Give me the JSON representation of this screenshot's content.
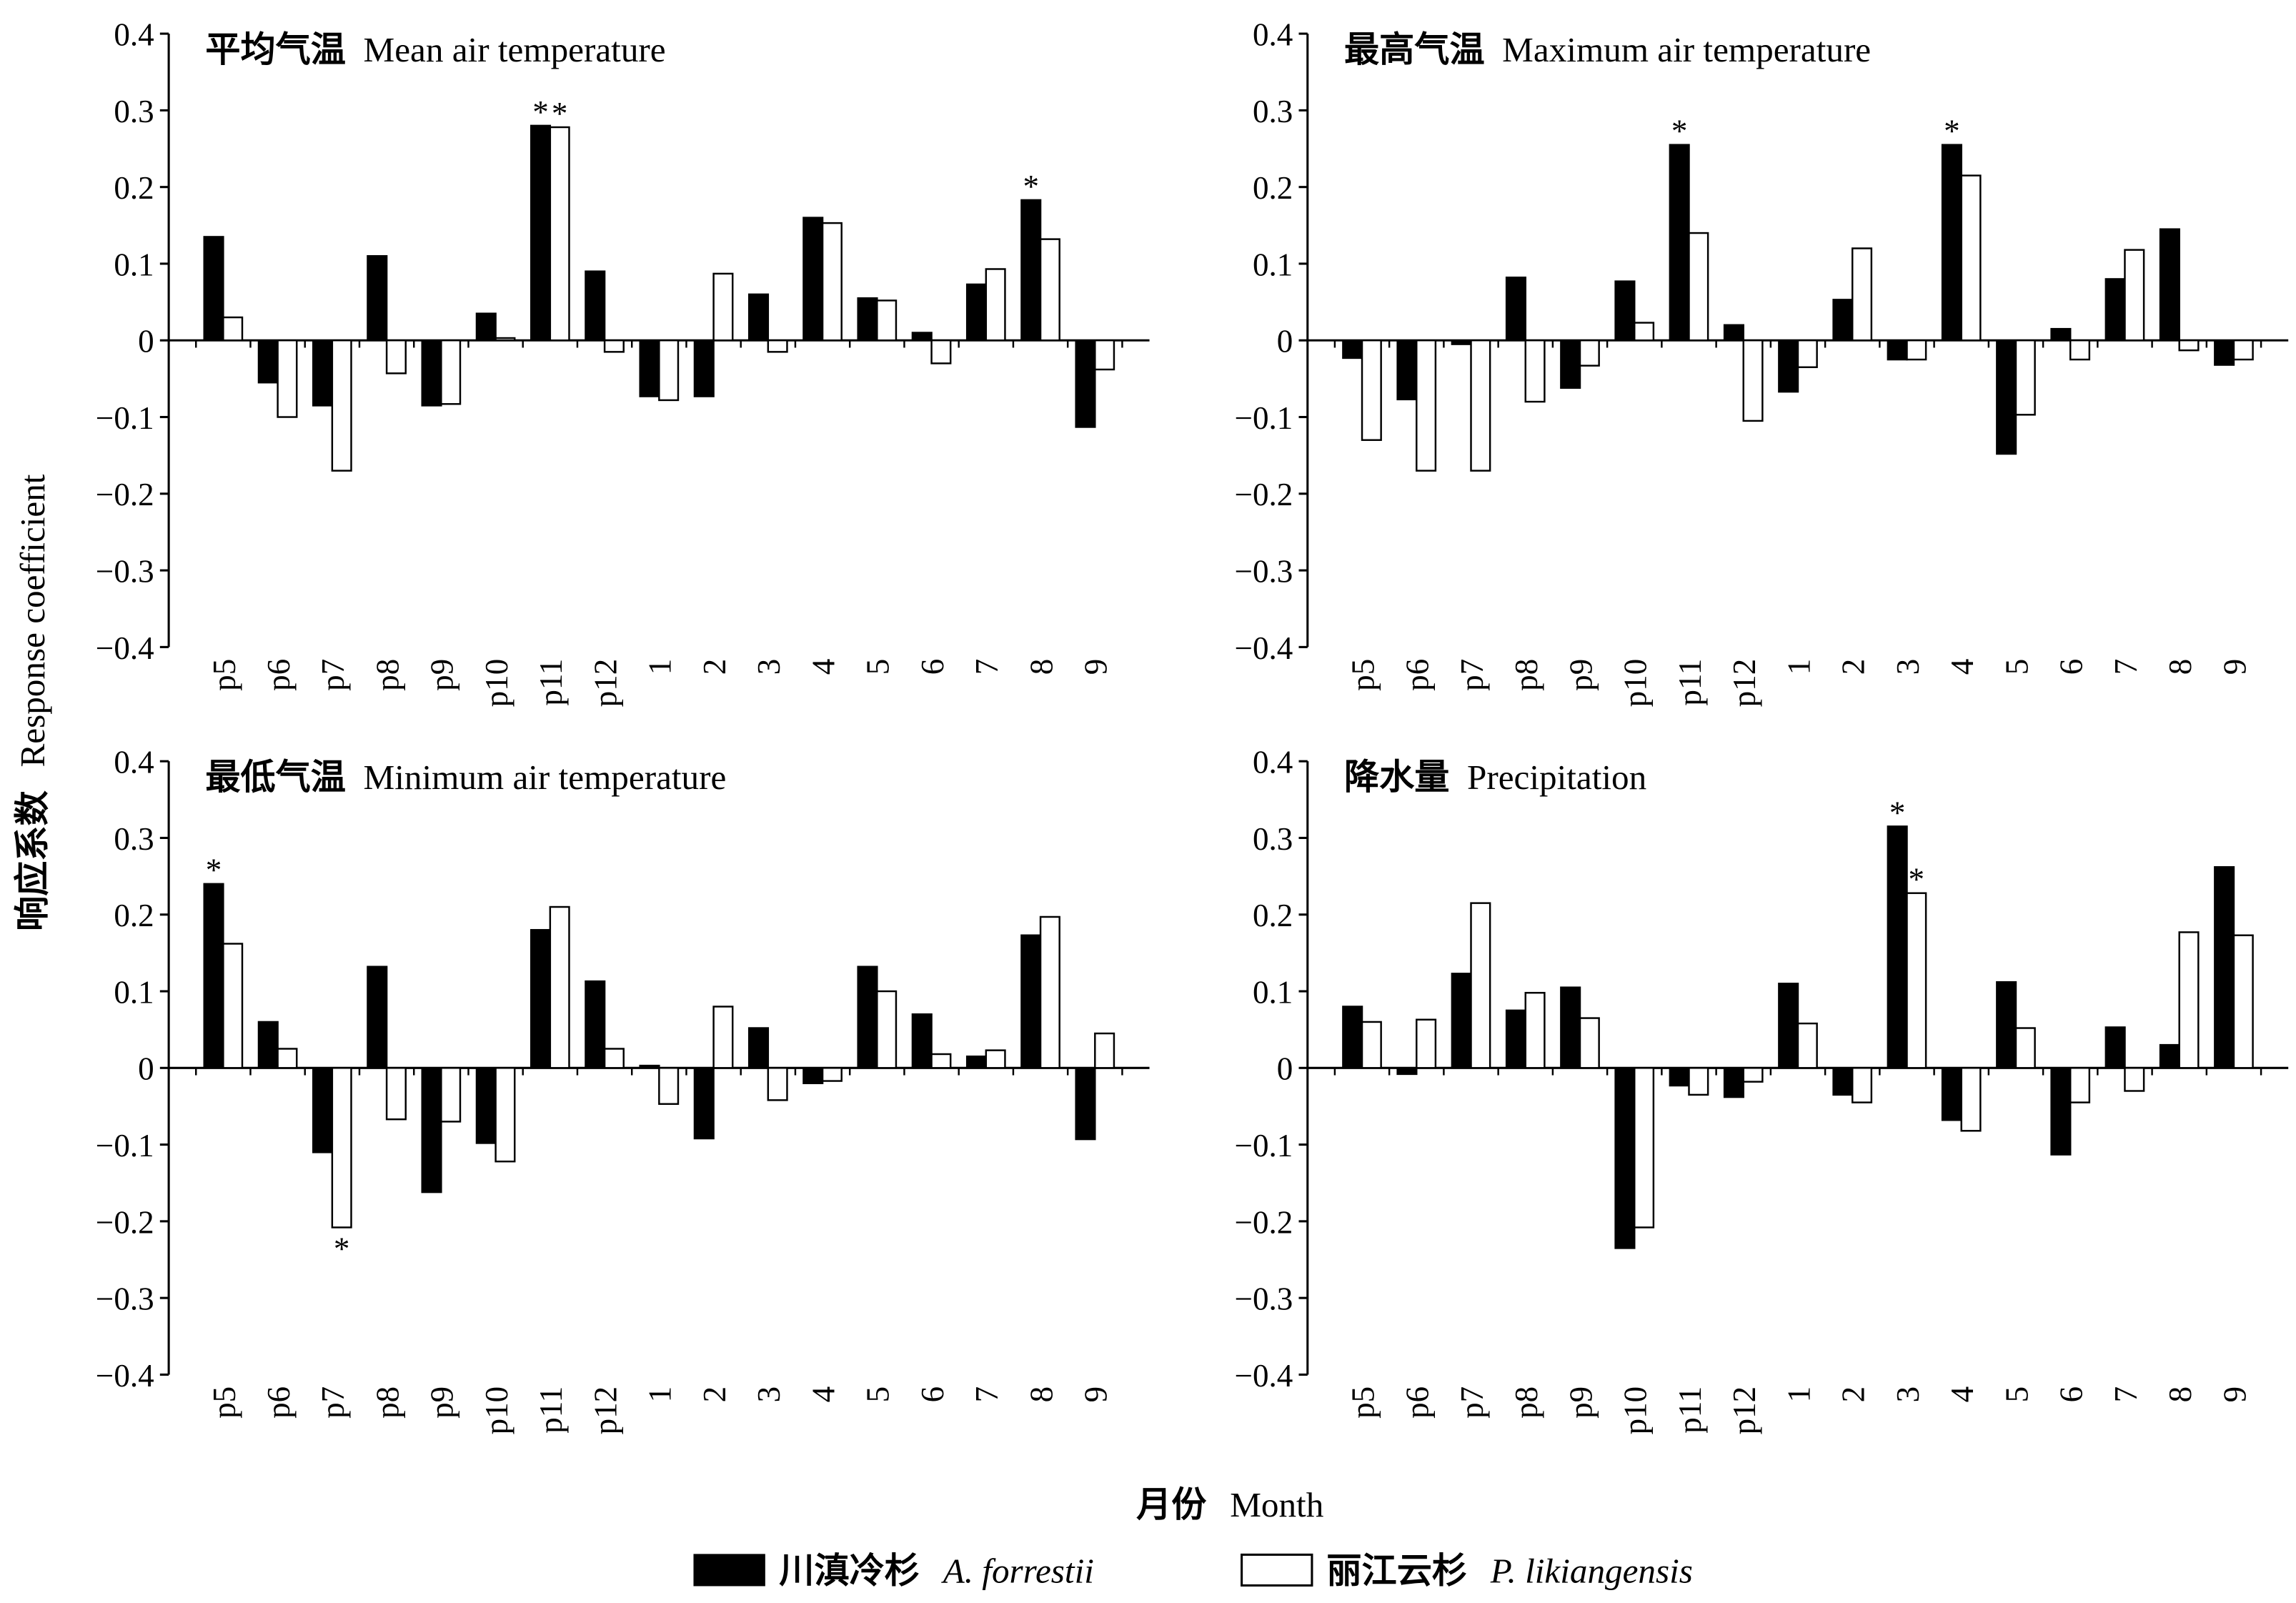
{
  "chart_data": [
    {
      "type": "bar",
      "title": "平均气温",
      "title_en": "Mean air temperature",
      "categories": [
        "p5",
        "p6",
        "p7",
        "p8",
        "p9",
        "p10",
        "p11",
        "p12",
        "1",
        "2",
        "3",
        "4",
        "5",
        "6",
        "7",
        "8",
        "9"
      ],
      "series": [
        {
          "name": "川滇冷杉",
          "name_latin": "A. forrestii",
          "color": "#000000",
          "values": [
            0.135,
            -0.055,
            -0.085,
            0.11,
            -0.085,
            0.035,
            0.28,
            0.09,
            -0.073,
            -0.073,
            0.06,
            0.16,
            0.055,
            0.01,
            0.073,
            0.183,
            -0.113
          ]
        },
        {
          "name": "丽江云杉",
          "name_latin": "P. likiangensis",
          "color": "#ffffff",
          "values": [
            0.03,
            -0.1,
            -0.17,
            -0.043,
            -0.083,
            0.003,
            0.278,
            -0.015,
            -0.078,
            0.087,
            -0.015,
            0.153,
            0.052,
            -0.03,
            0.093,
            0.132,
            -0.038
          ]
        }
      ],
      "annotations": [
        {
          "text": "*",
          "series": 0,
          "index": 6
        },
        {
          "text": "*",
          "series": 1,
          "index": 6
        },
        {
          "text": "*",
          "series": 0,
          "index": 15
        }
      ],
      "ylim": [
        -0.4,
        0.4
      ],
      "yticks": [
        {
          "value": -0.4,
          "label": "−0.4"
        },
        {
          "value": -0.3,
          "label": "−0.3"
        },
        {
          "value": -0.2,
          "label": "−0.2"
        },
        {
          "value": -0.1,
          "label": "−0.1"
        },
        0,
        0.1,
        0.2,
        0.3,
        0.4
      ]
    },
    {
      "type": "bar",
      "title": "最高气温",
      "title_en": "Maximum air temperature",
      "categories": [
        "p5",
        "p6",
        "p7",
        "p8",
        "p9",
        "p10",
        "p11",
        "p12",
        "1",
        "2",
        "3",
        "4",
        "5",
        "6",
        "7",
        "8",
        "9"
      ],
      "series": [
        {
          "name": "川滇冷杉",
          "name_latin": "A. forrestii",
          "color": "#000000",
          "values": [
            -0.023,
            -0.077,
            -0.005,
            0.082,
            -0.062,
            0.077,
            0.255,
            0.02,
            -0.067,
            0.053,
            -0.025,
            0.255,
            -0.148,
            0.015,
            0.08,
            0.145,
            -0.032
          ]
        },
        {
          "name": "丽江云杉",
          "name_latin": "P. likiangensis",
          "color": "#ffffff",
          "values": [
            -0.13,
            -0.17,
            -0.17,
            -0.08,
            -0.033,
            0.023,
            0.14,
            -0.105,
            -0.035,
            0.12,
            -0.025,
            0.215,
            -0.097,
            -0.025,
            0.118,
            -0.013,
            -0.025
          ]
        }
      ],
      "annotations": [
        {
          "text": "*",
          "series": 0,
          "index": 6
        },
        {
          "text": "*",
          "series": 0,
          "index": 11
        }
      ],
      "ylim": [
        -0.4,
        0.4
      ],
      "yticks": [
        {
          "value": -0.4,
          "label": "−0.4"
        },
        {
          "value": -0.3,
          "label": "−0.3"
        },
        {
          "value": -0.2,
          "label": "−0.2"
        },
        {
          "value": -0.1,
          "label": "−0.1"
        },
        0,
        0.1,
        0.2,
        0.3,
        0.4
      ]
    },
    {
      "type": "bar",
      "title": "最低气温",
      "title_en": "Minimum air temperature",
      "categories": [
        "p5",
        "p6",
        "p7",
        "p8",
        "p9",
        "p10",
        "p11",
        "p12",
        "1",
        "2",
        "3",
        "4",
        "5",
        "6",
        "7",
        "8",
        "9"
      ],
      "series": [
        {
          "name": "川滇冷杉",
          "name_latin": "A. forrestii",
          "color": "#000000",
          "values": [
            0.24,
            0.06,
            -0.11,
            0.132,
            -0.162,
            -0.098,
            0.18,
            0.113,
            0.003,
            -0.092,
            0.052,
            -0.02,
            0.132,
            0.07,
            0.015,
            0.173,
            -0.093
          ]
        },
        {
          "name": "丽江云杉",
          "name_latin": "P. likiangensis",
          "color": "#ffffff",
          "values": [
            0.162,
            0.025,
            -0.208,
            -0.067,
            -0.07,
            -0.122,
            0.21,
            0.025,
            -0.047,
            0.08,
            -0.042,
            -0.017,
            0.1,
            0.018,
            0.023,
            0.197,
            0.045
          ]
        }
      ],
      "annotations": [
        {
          "text": "*",
          "series": 0,
          "index": 0
        },
        {
          "text": "*",
          "series": 1,
          "index": 2
        }
      ],
      "ylim": [
        -0.4,
        0.4
      ],
      "yticks": [
        {
          "value": -0.4,
          "label": "−0.4"
        },
        {
          "value": -0.3,
          "label": "−0.3"
        },
        {
          "value": -0.2,
          "label": "−0.2"
        },
        {
          "value": -0.1,
          "label": "−0.1"
        },
        0,
        0.1,
        0.2,
        0.3,
        0.4
      ]
    },
    {
      "type": "bar",
      "title": "降水量",
      "title_en": "Precipitation",
      "categories": [
        "p5",
        "p6",
        "p7",
        "p8",
        "p9",
        "p10",
        "p11",
        "p12",
        "1",
        "2",
        "3",
        "4",
        "5",
        "6",
        "7",
        "8",
        "9"
      ],
      "series": [
        {
          "name": "川滇冷杉",
          "name_latin": "A. forrestii",
          "color": "#000000",
          "values": [
            0.08,
            -0.008,
            0.123,
            0.075,
            0.105,
            -0.235,
            -0.023,
            -0.038,
            0.11,
            -0.035,
            0.315,
            -0.068,
            0.112,
            -0.113,
            0.053,
            0.03,
            0.262
          ]
        },
        {
          "name": "丽江云杉",
          "name_latin": "P. likiangensis",
          "color": "#ffffff",
          "values": [
            0.06,
            0.063,
            0.215,
            0.098,
            0.065,
            -0.208,
            -0.035,
            -0.018,
            0.058,
            -0.045,
            0.228,
            -0.082,
            0.052,
            -0.045,
            -0.03,
            0.177,
            0.173
          ]
        }
      ],
      "annotations": [
        {
          "text": "*",
          "series": 0,
          "index": 10
        },
        {
          "text": "*",
          "series": 1,
          "index": 10
        }
      ],
      "ylim": [
        -0.4,
        0.4
      ],
      "yticks": [
        {
          "value": -0.4,
          "label": "−0.4"
        },
        {
          "value": -0.3,
          "label": "−0.3"
        },
        {
          "value": -0.2,
          "label": "−0.2"
        },
        {
          "value": -0.1,
          "label": "−0.1"
        },
        0,
        0.1,
        0.2,
        0.3,
        0.4
      ]
    }
  ],
  "ylabel": "响应系数",
  "ylabel_en": "Response coefficient",
  "xlabel": "月份",
  "xlabel_en": "Month"
}
